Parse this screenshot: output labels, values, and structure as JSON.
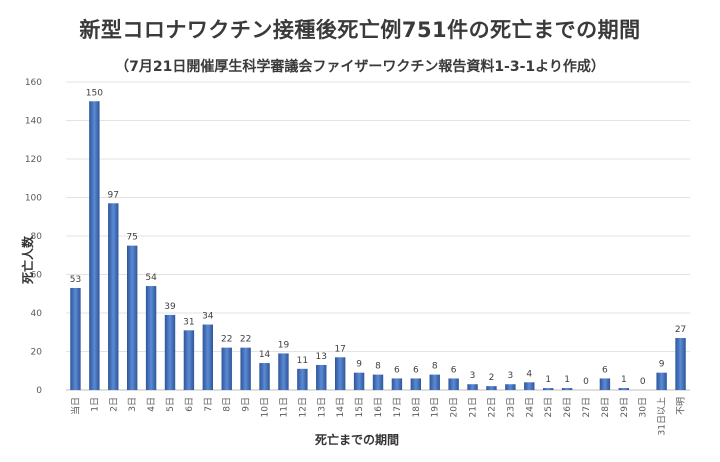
{
  "chart_data": {
    "type": "bar",
    "title": "新型コロナワクチン接種後死亡例751件の死亡までの期間",
    "subtitle": "（7月21日開催厚生科学審議会ファイザーワクチン報告資料1-3-1より作成）",
    "xlabel": "死亡までの期間",
    "ylabel": "死亡人数",
    "ylim": [
      0,
      160
    ],
    "yticks": [
      0,
      20,
      40,
      60,
      80,
      100,
      120,
      140,
      160
    ],
    "grid": true,
    "categories": [
      "当日",
      "1日",
      "2日",
      "3日",
      "4日",
      "5日",
      "6日",
      "7日",
      "8日",
      "9日",
      "10日",
      "11日",
      "12日",
      "13日",
      "14日",
      "15日",
      "16日",
      "17日",
      "18日",
      "19日",
      "20日",
      "21日",
      "22日",
      "23日",
      "24日",
      "25日",
      "26日",
      "27日",
      "28日",
      "29日",
      "30日",
      "31日以上",
      "不明"
    ],
    "values": [
      53,
      150,
      97,
      75,
      54,
      39,
      31,
      34,
      22,
      22,
      14,
      19,
      11,
      13,
      17,
      9,
      8,
      6,
      6,
      8,
      6,
      3,
      2,
      3,
      4,
      1,
      1,
      0,
      6,
      1,
      0,
      9,
      27
    ],
    "bar_color": "#4472c4"
  }
}
